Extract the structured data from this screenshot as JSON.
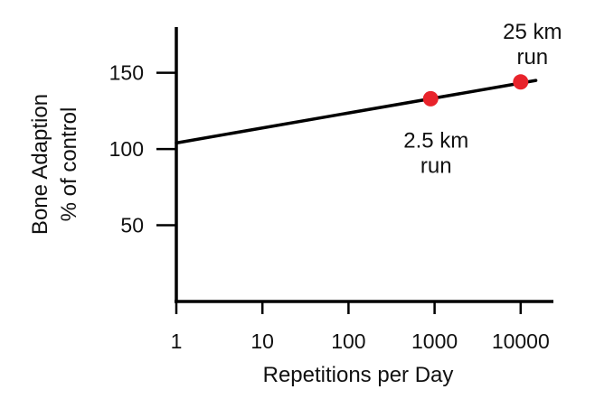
{
  "chart_data": {
    "type": "line",
    "xscale": "log",
    "xlim": [
      1,
      15000
    ],
    "ylim": [
      0,
      180
    ],
    "xlabel": "Repetitions per Day",
    "ylabel_lines": [
      "Bone Adaption",
      "% of control"
    ],
    "x_ticks": [
      1,
      10,
      100,
      1000,
      10000
    ],
    "x_tick_labels": [
      "1",
      "10",
      "100",
      "1000",
      "10000"
    ],
    "y_ticks": [
      50,
      100,
      150
    ],
    "y_tick_labels": [
      "50",
      "100",
      "150"
    ],
    "line": {
      "x": [
        1,
        15000
      ],
      "y": [
        104,
        145
      ]
    },
    "points": [
      {
        "x": 900,
        "y": 133,
        "label_lines": [
          "2.5 km",
          "run"
        ],
        "label_pos": "below"
      },
      {
        "x": 10000,
        "y": 144,
        "label_lines": [
          "25 km",
          "run"
        ],
        "label_pos": "above"
      }
    ],
    "colors": {
      "line": "#000000",
      "point": "#e8232b",
      "axis": "#000000"
    },
    "grid": false
  }
}
